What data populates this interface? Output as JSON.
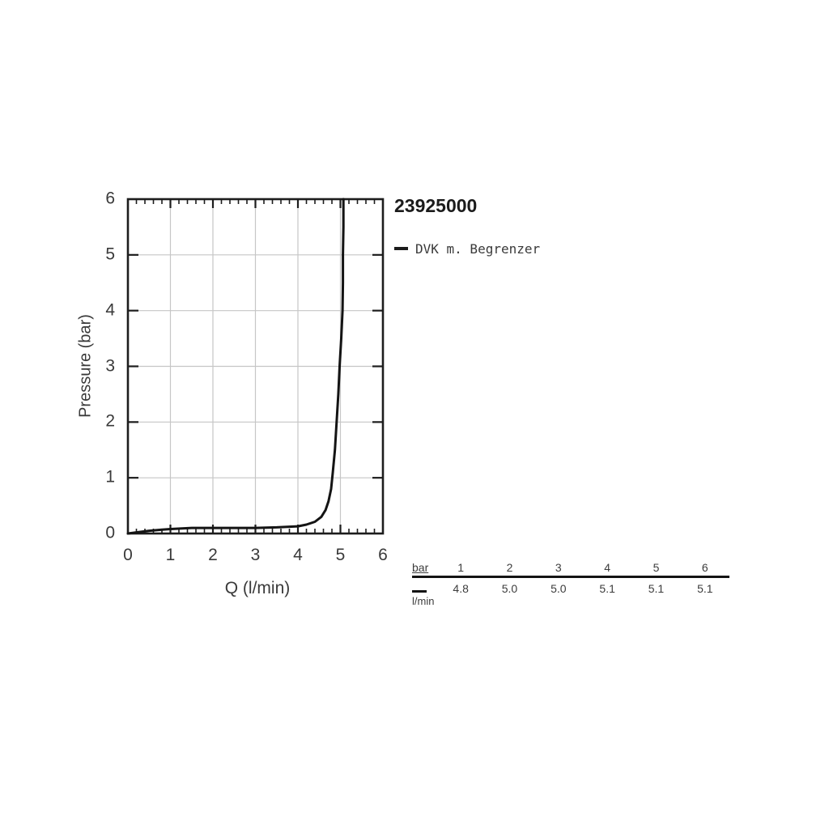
{
  "title": "23925000",
  "legend": {
    "label": "DVK m. Begrenzer",
    "swatch_color": "#1b1b1b"
  },
  "colors": {
    "curve": "#141414",
    "axis": "#1d1d1d",
    "grid": "#c6c6c6",
    "text": "#3a3a3a"
  },
  "chart_data": {
    "type": "line",
    "title": "23925000",
    "xlabel": "Q (l/min)",
    "ylabel": "Pressure (bar)",
    "xlim": [
      0,
      6
    ],
    "ylim": [
      0,
      6
    ],
    "x_ticks": [
      0,
      1,
      2,
      3,
      4,
      5,
      6
    ],
    "y_ticks": [
      0,
      1,
      2,
      3,
      4,
      5,
      6
    ],
    "x_minor_step": 0.2,
    "grid": true,
    "legend_position": "top-right-outside",
    "series": [
      {
        "name": "DVK m. Begrenzer",
        "color": "#141414",
        "points": [
          [
            0,
            0
          ],
          [
            0.2,
            0.02
          ],
          [
            0.5,
            0.05
          ],
          [
            0.8,
            0.07
          ],
          [
            1,
            0.08
          ],
          [
            1.5,
            0.1
          ],
          [
            2,
            0.1
          ],
          [
            2.5,
            0.1
          ],
          [
            3,
            0.1
          ],
          [
            3.5,
            0.11
          ],
          [
            4,
            0.13
          ],
          [
            4.2,
            0.16
          ],
          [
            4.4,
            0.21
          ],
          [
            4.55,
            0.3
          ],
          [
            4.65,
            0.42
          ],
          [
            4.72,
            0.58
          ],
          [
            4.78,
            0.8
          ],
          [
            4.82,
            1.1
          ],
          [
            4.87,
            1.5
          ],
          [
            4.91,
            2.0
          ],
          [
            4.95,
            2.5
          ],
          [
            4.98,
            3.0
          ],
          [
            5.02,
            3.5
          ],
          [
            5.05,
            4.0
          ],
          [
            5.06,
            4.5
          ],
          [
            5.06,
            5.0
          ],
          [
            5.07,
            5.5
          ],
          [
            5.07,
            6.0
          ]
        ]
      }
    ],
    "reference_table": {
      "bar": [
        1,
        2,
        3,
        4,
        5,
        6
      ],
      "l_per_min": [
        4.8,
        5.0,
        5.0,
        5.1,
        5.1,
        5.1
      ]
    }
  },
  "table": {
    "header_label": "bar",
    "pressures": [
      "1",
      "2",
      "3",
      "4",
      "5",
      "6"
    ],
    "flows": [
      "4.8",
      "5.0",
      "5.0",
      "5.1",
      "5.1",
      "5.1"
    ],
    "unit_label": "l/min"
  }
}
